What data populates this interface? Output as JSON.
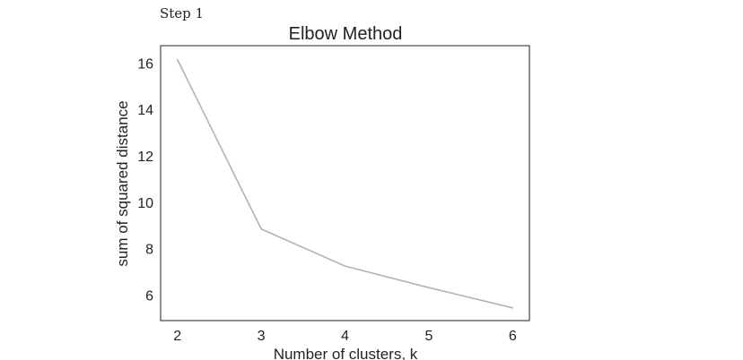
{
  "page": {
    "step_label": "Step 1"
  },
  "chart_data": {
    "type": "line",
    "title": "Elbow Method",
    "xlabel": "Number of clusters, k",
    "ylabel": "sum of squared distance",
    "x": [
      2,
      3,
      4,
      5,
      6
    ],
    "series": [
      {
        "values": [
          16.15,
          8.85,
          7.25,
          6.32,
          5.45
        ],
        "color": "#b3b3b3"
      }
    ],
    "xlim": [
      1.8,
      6.2
    ],
    "ylim": [
      4.9,
      16.75
    ],
    "xticks": [
      2,
      3,
      4,
      5,
      6
    ],
    "yticks": [
      6,
      8,
      10,
      12,
      14,
      16
    ],
    "grid": false,
    "legend": "none"
  }
}
